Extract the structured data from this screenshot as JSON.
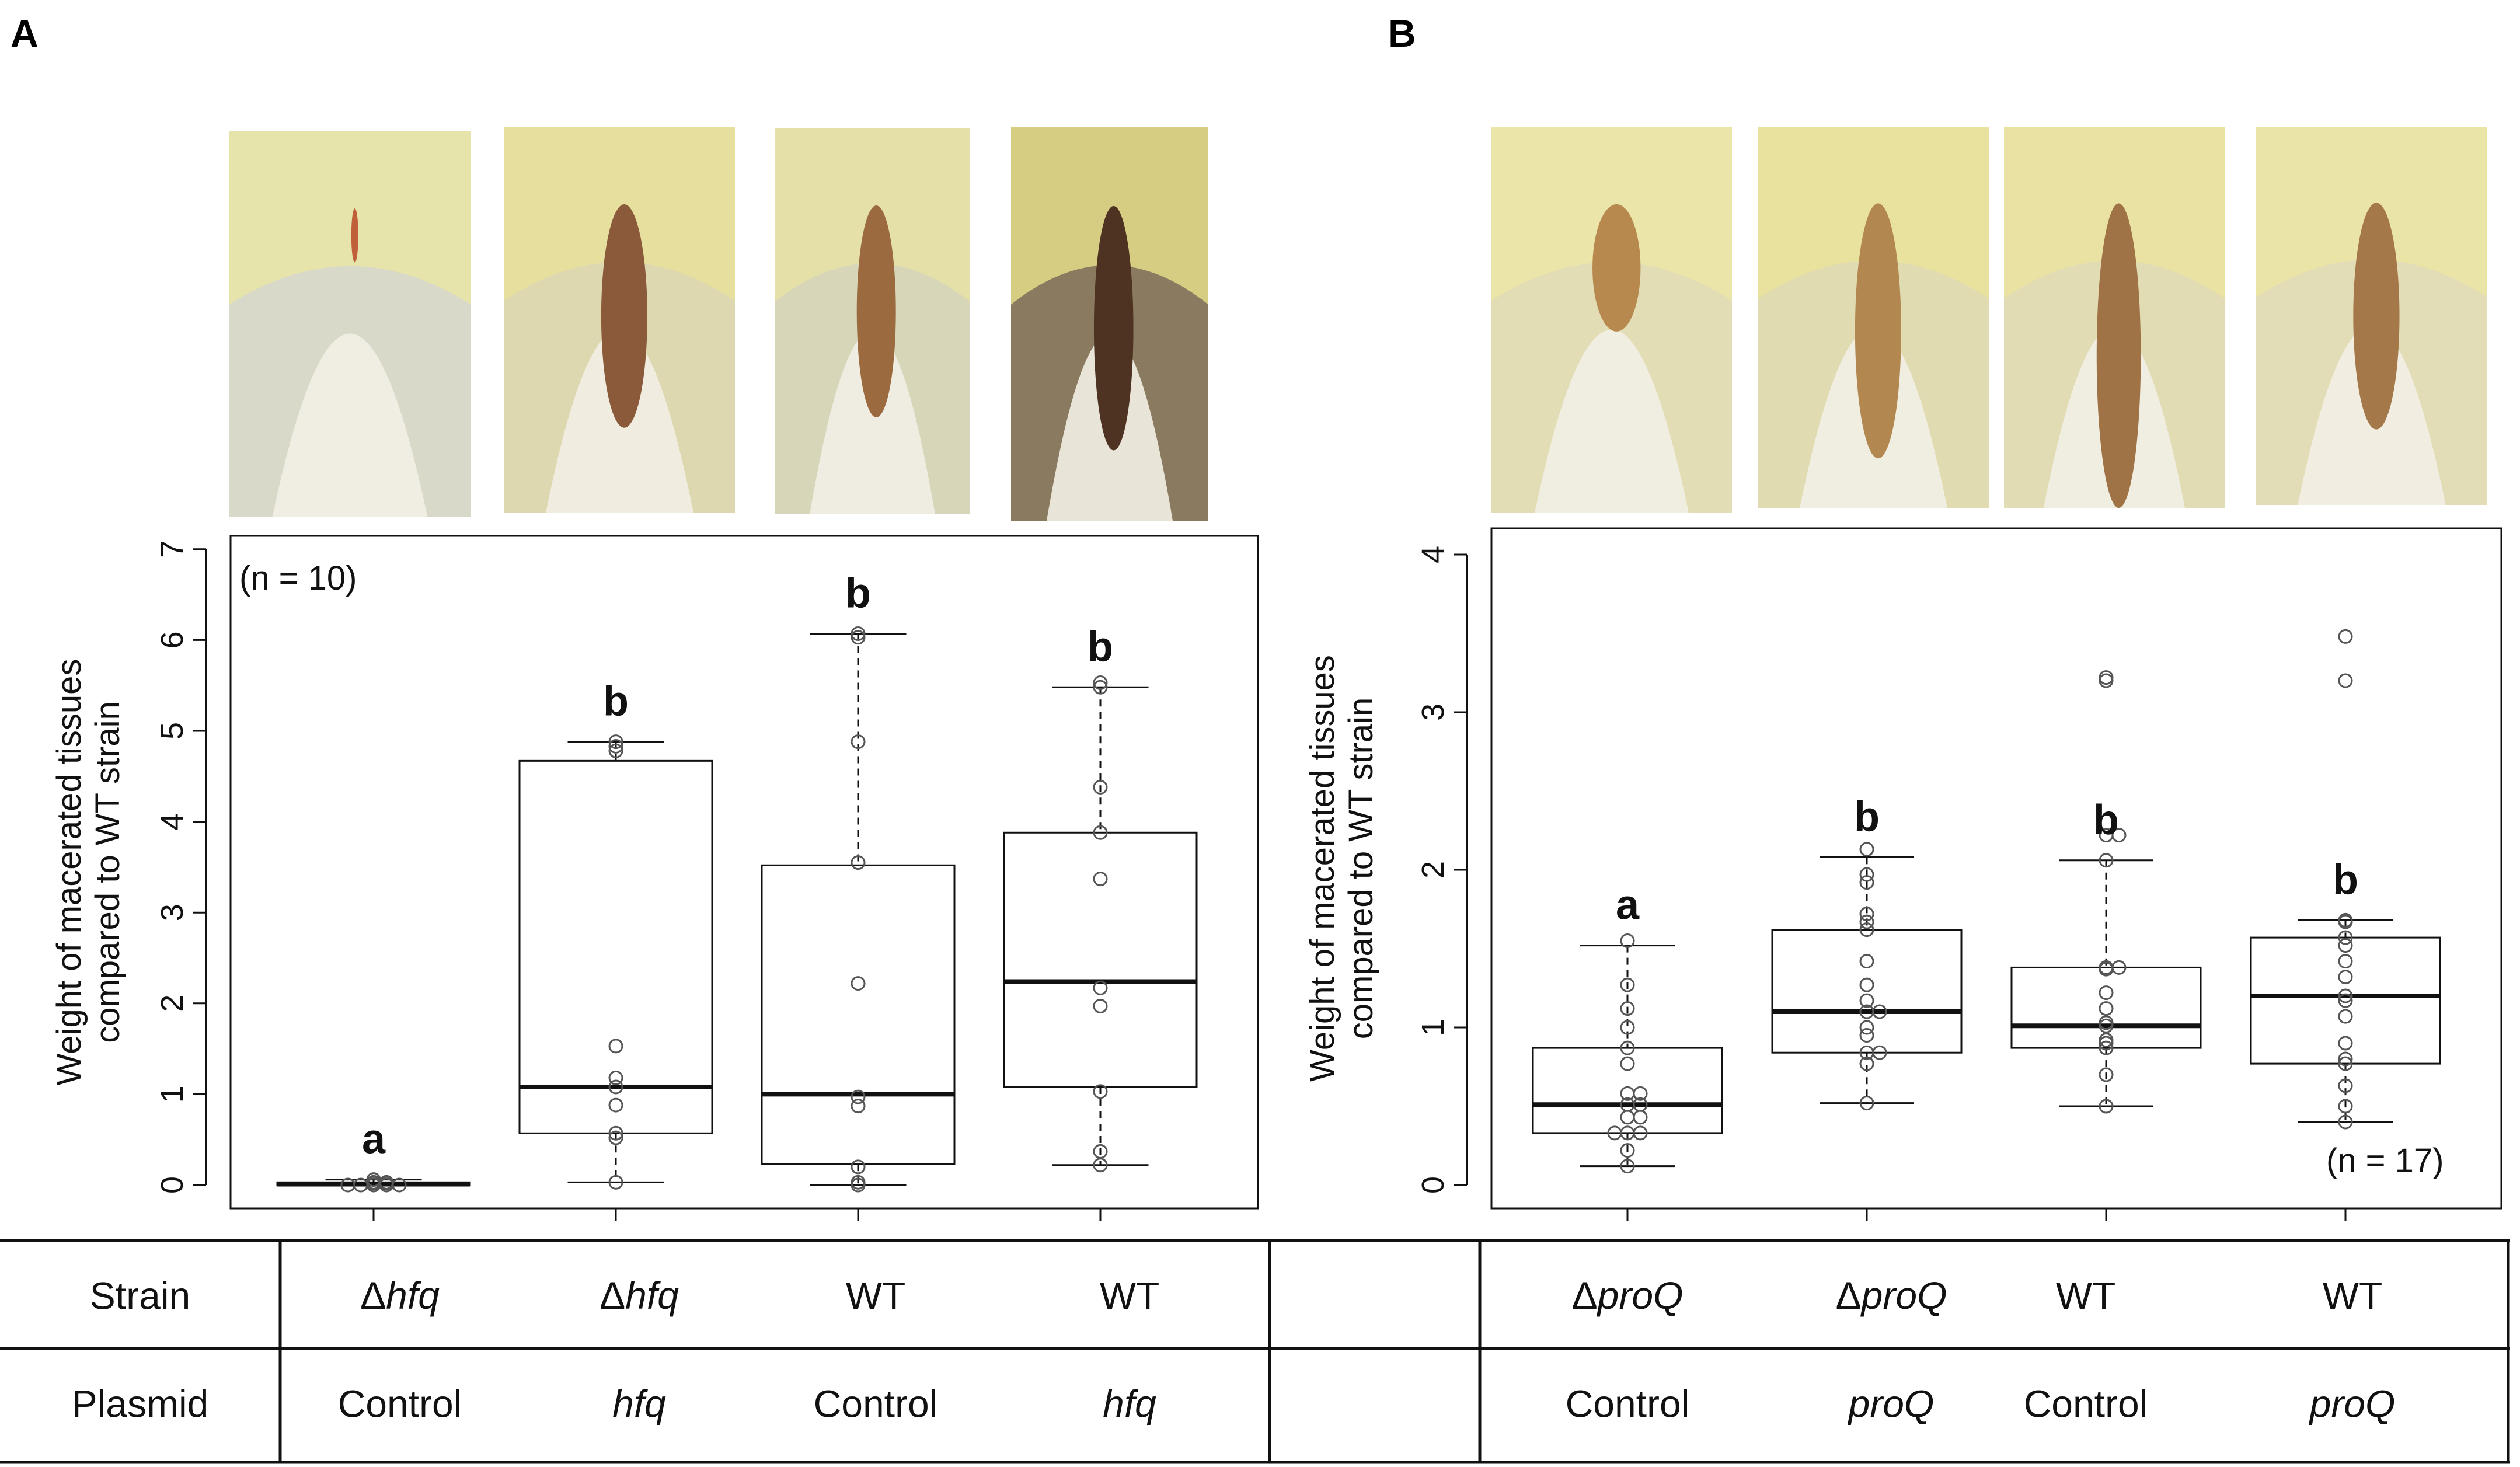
{
  "panels": {
    "a": {
      "letter": "A",
      "n_label": "(n = 10)"
    },
    "b": {
      "letter": "B",
      "n_label": "(n = 17)"
    }
  },
  "table": {
    "row1_label": "Strain",
    "row2_label": "Plasmid",
    "delta": "Δ",
    "a": {
      "strain_gene": "hfq",
      "cols": [
        {
          "strain_prefix": "Δ",
          "strain_italic": "hfq",
          "strain_plain": "",
          "plasmid": "Control",
          "plasmid_italic": false
        },
        {
          "strain_prefix": "Δ",
          "strain_italic": "hfq",
          "strain_plain": "",
          "plasmid": "hfq",
          "plasmid_italic": true
        },
        {
          "strain_prefix": "",
          "strain_italic": "",
          "strain_plain": "WT",
          "plasmid": "Control",
          "plasmid_italic": false
        },
        {
          "strain_prefix": "",
          "strain_italic": "",
          "strain_plain": "WT",
          "plasmid": "hfq",
          "plasmid_italic": true
        }
      ]
    },
    "b": {
      "cols": [
        {
          "strain_prefix": "Δ",
          "strain_italic": "proQ",
          "strain_plain": "",
          "plasmid": "Control",
          "plasmid_italic": false
        },
        {
          "strain_prefix": "Δ",
          "strain_italic": "proQ",
          "strain_plain": "",
          "plasmid": "proQ",
          "plasmid_italic": true
        },
        {
          "strain_prefix": "",
          "strain_italic": "",
          "strain_plain": "WT",
          "plasmid": "Control",
          "plasmid_italic": false
        },
        {
          "strain_prefix": "",
          "strain_italic": "",
          "strain_plain": "WT",
          "plasmid": "proQ",
          "plasmid_italic": true
        }
      ]
    }
  },
  "photos": {
    "a": [
      {
        "bg": "#d9d9c9",
        "leaf": "#e8e5a5",
        "lesion": "#c0603a"
      },
      {
        "bg": "#ddd8b0",
        "leaf": "#e7e09a",
        "lesion": "#8a5a3a"
      },
      {
        "bg": "#d8d6b8",
        "leaf": "#e6e2a4",
        "lesion": "#9b6b3f"
      },
      {
        "bg": "#8a7a60",
        "leaf": "#e3dc8a",
        "lesion": "#4e3322"
      }
    ],
    "b": [
      {
        "bg": "#e2ddb5",
        "leaf": "#ece6a8",
        "lesion": "#b8894f"
      },
      {
        "bg": "#e0dbb0",
        "leaf": "#eae39c",
        "lesion": "#b38750"
      },
      {
        "bg": "#e2dcb5",
        "leaf": "#ebe3a0",
        "lesion": "#9f7345"
      },
      {
        "bg": "#e3ddb7",
        "leaf": "#ebe5a4",
        "lesion": "#a47848"
      }
    ]
  },
  "chart_data": [
    {
      "type": "box",
      "panel": "A",
      "title": "",
      "xlabel": "",
      "ylabel": "Weight of macerated tissues compared to WT strain",
      "ylabel_line1": "Weight of macerated tissues",
      "ylabel_line2": "compared to WT strain",
      "ylim": [
        0,
        7
      ],
      "yticks": [
        "0",
        "1",
        "2",
        "3",
        "4",
        "5",
        "6",
        "7"
      ],
      "n_label": "(n = 10)",
      "groups": [
        {
          "strain": "Δhfq",
          "plasmid": "Control",
          "letter": "a",
          "min": 0.0,
          "q1": 0.0,
          "median": 0.01,
          "q3": 0.03,
          "max": 0.06,
          "points": [
            0.0,
            0.0,
            0.0,
            0.0,
            0.0,
            0.02,
            0.02,
            0.03,
            0.03,
            0.06
          ]
        },
        {
          "strain": "Δhfq",
          "plasmid": "hfq",
          "letter": "b",
          "min": 0.03,
          "q1": 0.57,
          "median": 1.08,
          "q3": 4.67,
          "max": 4.88,
          "points": [
            0.03,
            0.52,
            0.57,
            0.88,
            1.08,
            1.18,
            1.53,
            4.78,
            4.83,
            4.88
          ]
        },
        {
          "strain": "WT",
          "plasmid": "Control",
          "letter": "b",
          "min": 0.0,
          "q1": 0.23,
          "median": 1.0,
          "q3": 3.52,
          "max": 6.07,
          "points": [
            0.0,
            0.03,
            0.2,
            0.87,
            0.97,
            2.22,
            3.55,
            4.88,
            6.03,
            6.07
          ]
        },
        {
          "strain": "WT",
          "plasmid": "hfq",
          "letter": "b",
          "min": 0.22,
          "q1": 1.08,
          "median": 2.24,
          "q3": 3.88,
          "max": 5.48,
          "points": [
            0.22,
            0.37,
            1.03,
            1.97,
            2.17,
            3.37,
            3.88,
            4.38,
            5.48,
            5.53
          ]
        }
      ]
    },
    {
      "type": "box",
      "panel": "B",
      "title": "",
      "xlabel": "",
      "ylabel": "Weight of macerated tissues compared to WT strain",
      "ylabel_line1": "Weight of macerated tissues",
      "ylabel_line2": "compared to WT strain",
      "ylim": [
        0,
        4
      ],
      "yticks": [
        "0",
        "1",
        "2",
        "3",
        "4"
      ],
      "n_label": "(n = 17)",
      "groups": [
        {
          "strain": "ΔproQ",
          "plasmid": "Control",
          "letter": "a",
          "min": 0.12,
          "q1": 0.33,
          "median": 0.51,
          "q3": 0.87,
          "max": 1.52,
          "points": [
            0.12,
            0.22,
            0.33,
            0.33,
            0.33,
            0.43,
            0.43,
            0.51,
            0.51,
            0.58,
            0.58,
            0.77,
            0.87,
            1.0,
            1.12,
            1.27,
            1.55
          ]
        },
        {
          "strain": "ΔproQ",
          "plasmid": "proQ",
          "letter": "b",
          "min": 0.52,
          "q1": 0.84,
          "median": 1.1,
          "q3": 1.62,
          "max": 2.08,
          "points": [
            0.52,
            0.77,
            0.84,
            0.84,
            0.95,
            1.0,
            1.1,
            1.1,
            1.17,
            1.27,
            1.42,
            1.62,
            1.67,
            1.72,
            1.92,
            1.97,
            2.13
          ]
        },
        {
          "strain": "WT",
          "plasmid": "Control",
          "letter": "b",
          "min": 0.5,
          "q1": 0.87,
          "median": 1.01,
          "q3": 1.38,
          "max": 2.06,
          "points": [
            0.5,
            0.7,
            0.87,
            0.9,
            0.92,
            1.01,
            1.03,
            1.12,
            1.22,
            1.37,
            1.38,
            1.38,
            2.06,
            2.22,
            2.22,
            3.2,
            3.22
          ]
        },
        {
          "strain": "WT",
          "plasmid": "proQ",
          "letter": "b",
          "min": 0.4,
          "q1": 0.77,
          "median": 1.2,
          "q3": 1.57,
          "max": 1.68,
          "points": [
            0.4,
            0.5,
            0.63,
            0.77,
            0.8,
            0.9,
            1.07,
            1.17,
            1.2,
            1.32,
            1.42,
            1.52,
            1.57,
            1.67,
            1.68,
            3.2,
            3.48
          ]
        }
      ]
    }
  ]
}
